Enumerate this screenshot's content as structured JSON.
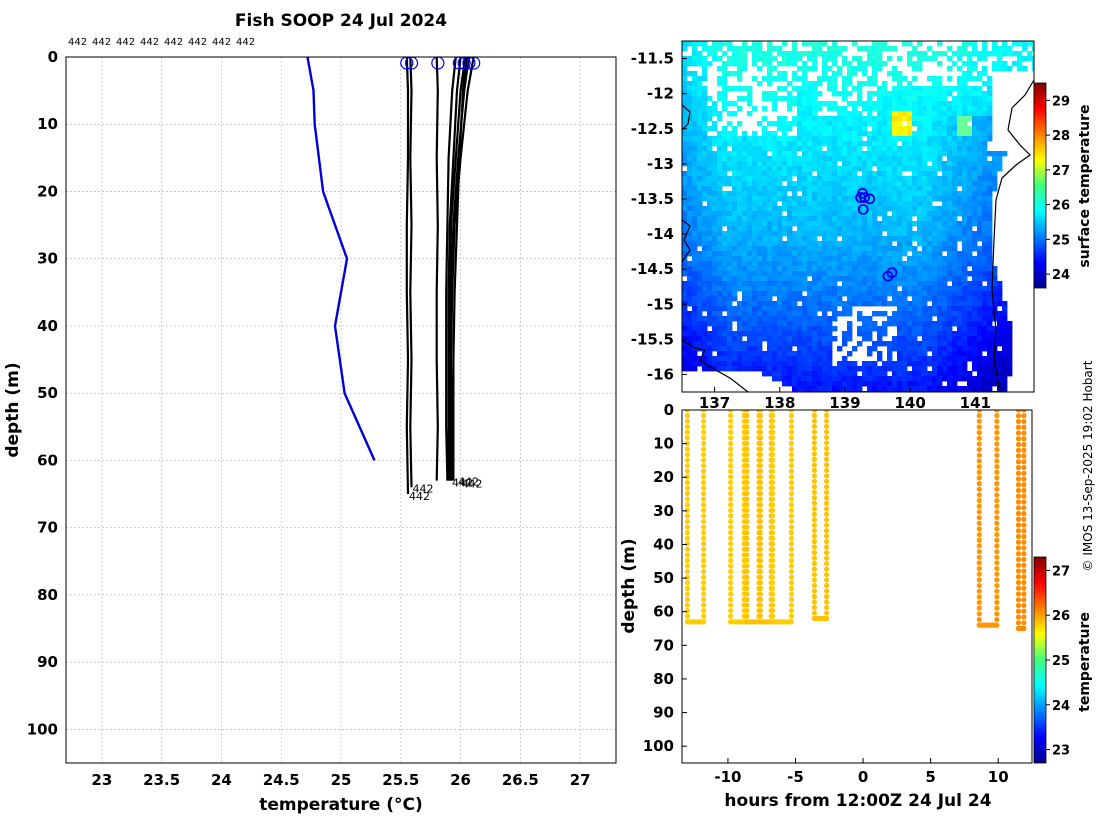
{
  "title": "Fish SOOP 24 Jul 2024",
  "credit": "© IMOS 13-Sep-2025 19:02 Hobart",
  "colors": {
    "profile_line": "#000000",
    "mean_profile": "#0000dd",
    "marker": "#0000ee",
    "grid": "#b8b8b8",
    "land_line": "#000000"
  },
  "chart_data": [
    {
      "id": "profiles",
      "type": "line",
      "title": "Fish SOOP 24 Jul 2024",
      "xlabel": "temperature (°C)",
      "ylabel": "depth (m)",
      "xlim": [
        22.7,
        27.3
      ],
      "ylim": [
        105,
        0
      ],
      "xticks": [
        23,
        23.5,
        24,
        24.5,
        25,
        25.5,
        26,
        26.5,
        27
      ],
      "xtick_labels": [
        "23",
        "23.5",
        "24",
        "24.5",
        "25",
        "25.5",
        "26",
        "26.5",
        "27"
      ],
      "yticks": [
        0,
        10,
        20,
        30,
        40,
        50,
        60,
        70,
        80,
        90,
        100
      ],
      "ytick_labels": [
        "0",
        "10",
        "20",
        "30",
        "40",
        "50",
        "60",
        "70",
        "80",
        "90",
        "100"
      ],
      "grid": true,
      "top_labels": [
        "442",
        "442",
        "442",
        "442",
        "442",
        "442",
        "442",
        "442"
      ],
      "series": [
        {
          "name": "mean",
          "color": "#0000dd",
          "temperature": [
            24.72,
            24.77,
            24.78,
            24.85,
            25.05,
            24.95,
            25.03,
            25.28
          ],
          "depth": [
            0,
            5,
            10,
            20,
            30,
            40,
            50,
            60
          ]
        },
        {
          "name": "profile-1",
          "temperature": [
            25.55,
            25.56,
            25.56,
            25.55,
            25.55,
            25.56,
            25.55,
            25.56
          ],
          "depth": [
            0,
            5,
            15,
            25,
            35,
            45,
            55,
            65
          ]
        },
        {
          "name": "profile-2",
          "temperature": [
            25.58,
            25.59,
            25.58,
            25.59,
            25.58,
            25.59,
            25.58,
            25.59
          ],
          "depth": [
            0,
            5,
            15,
            25,
            35,
            45,
            55,
            64
          ]
        },
        {
          "name": "profile-3",
          "temperature": [
            25.8,
            25.81,
            25.8,
            25.81,
            25.8,
            25.8,
            25.81,
            25.8
          ],
          "depth": [
            0,
            5,
            15,
            25,
            35,
            45,
            55,
            63
          ]
        },
        {
          "name": "profile-4",
          "temperature": [
            25.96,
            25.93,
            25.9,
            25.89,
            25.88,
            25.88,
            25.88,
            25.89
          ],
          "depth": [
            0,
            5,
            15,
            25,
            35,
            45,
            55,
            63
          ]
        },
        {
          "name": "profile-5",
          "temperature": [
            26.0,
            25.97,
            25.94,
            25.91,
            25.9,
            25.9,
            25.9,
            25.9
          ],
          "depth": [
            0,
            5,
            15,
            25,
            35,
            45,
            55,
            63
          ]
        },
        {
          "name": "profile-6",
          "temperature": [
            26.04,
            26.0,
            25.96,
            25.92,
            25.91,
            25.9,
            25.91,
            25.91
          ],
          "depth": [
            0,
            5,
            15,
            25,
            35,
            45,
            55,
            63
          ]
        },
        {
          "name": "profile-7",
          "temperature": [
            26.07,
            26.03,
            25.98,
            25.94,
            25.92,
            25.91,
            25.92,
            25.92
          ],
          "depth": [
            0,
            5,
            15,
            25,
            35,
            45,
            55,
            63
          ]
        },
        {
          "name": "profile-8",
          "temperature": [
            26.11,
            26.06,
            26.0,
            25.95,
            25.93,
            25.92,
            25.93,
            25.93
          ],
          "depth": [
            0,
            5,
            15,
            25,
            35,
            45,
            55,
            63
          ]
        },
        {
          "name": "profile-9",
          "temperature": [
            26.05,
            26.02,
            25.99,
            25.97,
            25.95,
            25.94,
            25.94,
            25.94
          ],
          "depth": [
            0,
            5,
            15,
            25,
            35,
            45,
            55,
            63
          ]
        }
      ],
      "surface_markers": [
        25.55,
        25.59,
        25.81,
        25.99,
        26.03,
        26.07,
        26.11
      ],
      "bottom_labels": [
        {
          "text": "442",
          "temperature": 25.56,
          "depth": 65.3
        },
        {
          "text": "442",
          "temperature": 25.59,
          "depth": 64.2
        },
        {
          "text": "442",
          "temperature": 25.92,
          "depth": 63.3
        },
        {
          "text": "442",
          "temperature": 25.97,
          "depth": 63.1
        },
        {
          "text": "442",
          "temperature": 26.0,
          "depth": 63.4
        }
      ]
    },
    {
      "id": "sst-map",
      "type": "heatmap",
      "xlabel": "",
      "ylabel": "",
      "xlim": [
        136.5,
        141.9
      ],
      "ylim": [
        -11.25,
        -16.25
      ],
      "xticks": [
        137,
        138,
        139,
        140,
        141
      ],
      "xtick_labels": [
        "137",
        "138",
        "139",
        "140",
        "141"
      ],
      "yticks": [
        -11.5,
        -12,
        -12.5,
        -13,
        -13.5,
        -14,
        -14.5,
        -15,
        -15.5,
        -16
      ],
      "ytick_labels": [
        "-11.5",
        "-12",
        "-12.5",
        "-13",
        "-13.5",
        "-14",
        "-14.5",
        "-15",
        "-15.5",
        "-16"
      ],
      "colorbar": {
        "label": "surface temperature",
        "range": [
          23.6,
          29.5
        ],
        "ticks": [
          24,
          25,
          26,
          27,
          28,
          29
        ],
        "tick_labels": [
          "24",
          "25",
          "26",
          "27",
          "28",
          "29"
        ]
      },
      "profile_locations": [
        {
          "lon": 139.27,
          "lat": -13.42
        },
        {
          "lon": 139.3,
          "lat": -13.48
        },
        {
          "lon": 139.24,
          "lat": -13.48
        },
        {
          "lon": 139.38,
          "lat": -13.5
        },
        {
          "lon": 139.28,
          "lat": -13.65
        },
        {
          "lon": 139.72,
          "lat": -14.55
        },
        {
          "lon": 139.66,
          "lat": -14.6
        }
      ]
    },
    {
      "id": "depth-time",
      "type": "scatter",
      "xlabel": "hours from 12:00Z 24 Jul 24",
      "ylabel": "depth (m)",
      "xlim": [
        -13.4,
        12.5
      ],
      "ylim": [
        105,
        0
      ],
      "xticks": [
        -10,
        -5,
        0,
        5,
        10
      ],
      "xtick_labels": [
        "-10",
        "-5",
        "0",
        "5",
        "10"
      ],
      "yticks": [
        0,
        10,
        20,
        30,
        40,
        50,
        60,
        70,
        80,
        90,
        100
      ],
      "ytick_labels": [
        "0",
        "10",
        "20",
        "30",
        "40",
        "50",
        "60",
        "70",
        "80",
        "90",
        "100"
      ],
      "colorbar": {
        "label": "temperature",
        "range": [
          22.7,
          27.3
        ],
        "ticks": [
          23,
          24,
          25,
          26,
          27
        ],
        "tick_labels": [
          "23",
          "24",
          "25",
          "26",
          "27"
        ]
      },
      "casts": [
        {
          "start": -13.0,
          "end": -11.8,
          "max_depth": 63,
          "temp": 25.8
        },
        {
          "start": -9.8,
          "end": -8.8,
          "max_depth": 63,
          "temp": 25.8
        },
        {
          "start": -8.6,
          "end": -7.7,
          "max_depth": 63,
          "temp": 25.85
        },
        {
          "start": -7.6,
          "end": -6.8,
          "max_depth": 63,
          "temp": 25.85
        },
        {
          "start": -6.7,
          "end": -5.3,
          "max_depth": 63,
          "temp": 25.8
        },
        {
          "start": -3.6,
          "end": -2.7,
          "max_depth": 62,
          "temp": 25.85
        },
        {
          "start": 8.6,
          "end": 9.9,
          "max_depth": 64,
          "temp": 26.05
        },
        {
          "start": 11.5,
          "end": 11.9,
          "max_depth": 65,
          "temp": 26.1
        }
      ]
    }
  ]
}
